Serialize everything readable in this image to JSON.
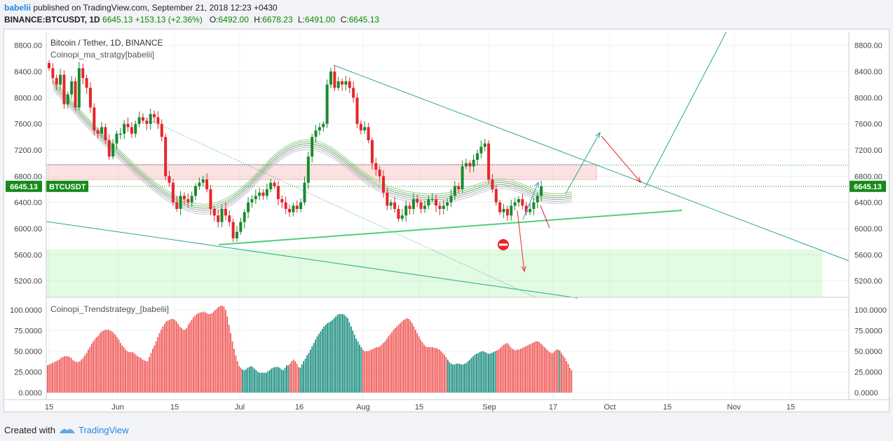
{
  "header": {
    "user": "babelii",
    "published_text": "published on TradingView.com, September 21, 2018 12:23 +0430",
    "symbol_line": "BINANCE:BTCUSDT, 1D",
    "last_price": "6645.13",
    "change": "+153.13 (+2.36%)",
    "open_label": "O:",
    "open": "6492.00",
    "high_label": "H:",
    "high": "6678.23",
    "low_label": "L:",
    "low": "6491.00",
    "close_label": "C:",
    "close": "6645.13"
  },
  "footer": {
    "created_with": "Created with",
    "brand": "TradingView"
  },
  "colors": {
    "up": "#1a8a2e",
    "down": "#e5262b",
    "osc_red": "#ef5350",
    "osc_teal": "#138a7a",
    "trend_line": "#2aa889",
    "support": "#4fd07a",
    "price_tag": "#168a1a"
  },
  "chart_data": [
    {
      "type": "candlestick",
      "title": "Bitcoin / Tether, 1D, BINANCE",
      "indicator": "Coinopi_ma_stratgy[babelii]",
      "price_label": "6645.13",
      "symbol_tag": "BTCUSDT",
      "ylim": [
        4950,
        9000
      ],
      "y_ticks": [
        "8800.00",
        "8400.00",
        "8000.00",
        "7600.00",
        "7200.00",
        "6800.00",
        "6400.00",
        "6000.00",
        "5600.00",
        "5200.00"
      ],
      "x_ticks": [
        "15",
        "Jun",
        "15",
        "Jul",
        "16",
        "Aug",
        "15",
        "Sep",
        "17",
        "Oct",
        "15",
        "Nov",
        "15"
      ],
      "grid": true,
      "candles_close": [
        8450,
        8300,
        8200,
        8350,
        7900,
        8050,
        8250,
        7850,
        8450,
        8300,
        8150,
        7850,
        7500,
        7450,
        7550,
        7350,
        7100,
        7300,
        7450,
        7450,
        7600,
        7550,
        7450,
        7600,
        7700,
        7650,
        7600,
        7750,
        7700,
        7600,
        7400,
        6800,
        6700,
        6400,
        6300,
        6500,
        6450,
        6400,
        6500,
        6650,
        6700,
        6750,
        6600,
        6300,
        6200,
        6100,
        6300,
        6200,
        6100,
        5850,
        5950,
        6100,
        6250,
        6400,
        6450,
        6500,
        6550,
        6500,
        6600,
        6700,
        6650,
        6450,
        6400,
        6300,
        6250,
        6350,
        6300,
        6400,
        6700,
        7100,
        7400,
        7500,
        7550,
        7600,
        8200,
        8400,
        8150,
        8250,
        8200,
        8250,
        8150,
        8000,
        7600,
        7500,
        7550,
        7350,
        7000,
        6900,
        6800,
        6550,
        6350,
        6400,
        6300,
        6150,
        6200,
        6350,
        6300,
        6450,
        6400,
        6300,
        6350,
        6450,
        6450,
        6350,
        6300,
        6350,
        6400,
        6500,
        6650,
        6600,
        6950,
        7000,
        6950,
        7050,
        7150,
        7250,
        7300,
        6750,
        6600,
        6400,
        6250,
        6300,
        6200,
        6350,
        6400,
        6450,
        6350,
        6250,
        6300,
        6400,
        6500,
        6645
      ],
      "ma_ribbon": [
        8200,
        8080,
        7960,
        7830,
        7700,
        7580,
        7460,
        7340,
        7230,
        7120,
        7010,
        6900,
        6800,
        6700,
        6610,
        6530,
        6460,
        6400,
        6350,
        6320,
        6310,
        6320,
        6350,
        6400,
        6470,
        6560,
        6660,
        6780,
        6900,
        7020,
        7120,
        7200,
        7260,
        7290,
        7300,
        7280,
        7240,
        7180,
        7100,
        7010,
        6920,
        6830,
        6750,
        6680,
        6620,
        6570,
        6540,
        6510,
        6490,
        6480,
        6470,
        6470,
        6480,
        6500,
        6530,
        6560,
        6600,
        6640,
        6680,
        6700,
        6700,
        6680,
        6640,
        6590,
        6540,
        6500,
        6480,
        6470,
        6480,
        6500
      ],
      "annotations": {
        "resistance_zone": [
          6750,
          6980
        ],
        "support_zone": [
          4950,
          5680
        ],
        "horizontal_level": 6970,
        "price_line": 6645.13
      }
    },
    {
      "type": "bar",
      "title": "Coinopi_Trendstrategy_[babelii]",
      "ylim": [
        0,
        105
      ],
      "y_ticks": [
        "100.0000",
        "75.0000",
        "50.0000",
        "25.0000",
        "0.0000"
      ],
      "values": [
        33,
        34,
        35,
        36,
        37,
        38,
        39,
        40,
        42,
        43,
        44,
        44,
        44,
        43,
        42,
        39,
        38,
        37,
        37,
        38,
        40,
        42,
        45,
        48,
        52,
        55,
        59,
        62,
        65,
        67,
        69,
        72,
        74,
        75,
        76,
        76,
        76,
        75,
        74,
        72,
        70,
        67,
        64,
        60,
        57,
        55,
        52,
        50,
        49,
        49,
        49,
        48,
        46,
        44,
        43,
        42,
        40,
        39,
        38,
        38,
        43,
        48,
        53,
        57,
        62,
        67,
        72,
        76,
        80,
        83,
        86,
        87,
        88,
        89,
        89,
        88,
        86,
        83,
        80,
        78,
        76,
        76,
        78,
        82,
        85,
        88,
        91,
        93,
        95,
        96,
        97,
        97,
        98,
        97,
        96,
        95,
        95,
        96,
        98,
        100,
        102,
        104,
        105,
        105,
        104,
        100,
        92,
        82,
        72,
        62,
        53,
        45,
        38,
        32,
        30,
        28,
        27,
        28,
        30,
        31,
        32,
        31,
        29,
        27,
        25,
        24,
        24,
        24,
        24,
        24,
        26,
        27,
        29,
        30,
        31,
        31,
        31,
        30,
        28,
        27,
        30,
        33,
        33,
        35,
        38,
        40,
        38,
        35,
        31,
        30,
        34,
        38,
        41,
        45,
        48,
        52,
        56,
        60,
        64,
        68,
        71,
        74,
        77,
        80,
        82,
        84,
        85,
        86,
        88,
        90,
        92,
        94,
        95,
        95,
        95,
        94,
        92,
        90,
        85,
        80,
        75,
        70,
        65,
        62,
        58,
        55,
        52,
        50,
        50,
        50,
        51,
        52,
        53,
        54,
        55,
        55,
        56,
        58,
        60,
        62,
        65,
        68,
        70,
        73,
        76,
        78,
        80,
        82,
        84,
        86,
        88,
        89,
        90,
        89,
        87,
        84,
        80,
        76,
        72,
        68,
        64,
        61,
        58,
        56,
        55,
        55,
        55,
        55,
        54,
        54,
        53,
        52,
        50,
        48,
        46,
        43,
        40,
        37,
        35,
        34,
        34,
        35,
        35,
        35,
        34,
        34,
        35,
        36,
        38,
        40,
        42,
        44,
        46,
        47,
        48,
        49,
        50,
        50,
        49,
        48,
        47,
        47,
        48,
        49,
        50,
        51,
        52,
        54,
        56,
        58,
        59,
        60,
        58,
        55,
        53,
        52,
        51,
        52,
        52,
        53,
        54,
        55,
        56,
        57,
        58,
        59,
        60,
        61,
        62,
        62,
        61,
        59,
        57,
        55,
        53,
        51,
        49,
        48,
        48,
        50,
        52,
        52,
        51,
        48,
        45,
        42,
        38,
        35,
        30,
        27
      ],
      "colors_by_segment": [
        [
          "red",
          0,
          115
        ],
        [
          "teal",
          115,
          143
        ],
        [
          "red",
          143,
          149
        ],
        [
          "teal",
          149,
          186
        ],
        [
          "red",
          186,
          236
        ],
        [
          "teal",
          236,
          265
        ],
        [
          "red",
          265,
          302
        ],
        [
          "teal",
          302,
          303
        ]
      ]
    }
  ]
}
